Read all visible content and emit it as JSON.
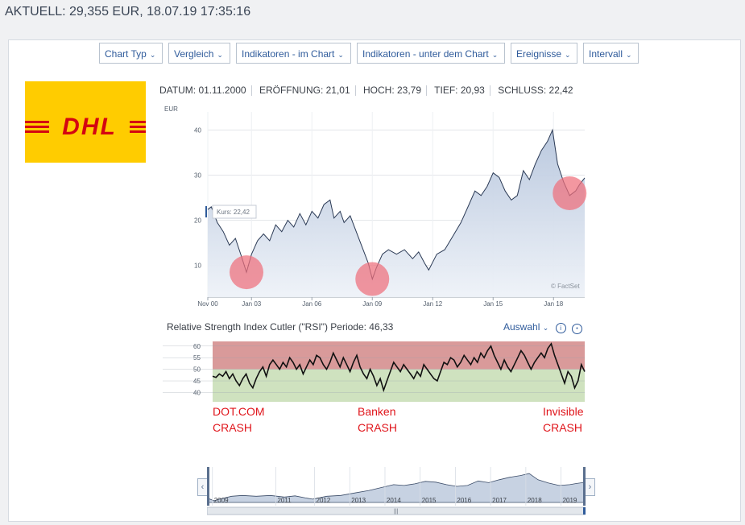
{
  "headline": "AKTUELL: 29,355 EUR, 18.07.19 17:35:16",
  "toolbar": [
    {
      "label": "Chart Typ"
    },
    {
      "label": "Vergleich"
    },
    {
      "label": "Indikatoren - im Chart"
    },
    {
      "label": "Indikatoren - unter dem Chart"
    },
    {
      "label": "Ereignisse"
    },
    {
      "label": "Intervall"
    }
  ],
  "logo": {
    "text": "DHL",
    "bg": "#ffcc00",
    "fg": "#d40511"
  },
  "stats": {
    "datum": "DATUM: 01.11.2000",
    "eroeffnung": "ERÖFFNUNG: 21,01",
    "hoch": "HOCH: 23,79",
    "tief": "TIEF: 20,93",
    "schluss": "SCHLUSS: 22,42"
  },
  "price_chart": {
    "ylabel": "EUR",
    "yticks": [
      "40",
      "30",
      "20",
      "10"
    ],
    "xticks": [
      "Nov 00",
      "Jan 03",
      "Jan 06",
      "Jan 09",
      "Jan 12",
      "Jan 15",
      "Jan 18"
    ],
    "tooltip": "Kurs: 22,42",
    "source": "© FactSet"
  },
  "rsi": {
    "title": "Relative Strength Index Cutler (\"RSI\") Periode: 46,33",
    "auswahl": "Auswahl",
    "yticks": [
      "60",
      "55",
      "50",
      "45",
      "40"
    ]
  },
  "annotations": [
    {
      "line1": "DOT.COM",
      "line2": "CRASH"
    },
    {
      "line1": "Banken",
      "line2": "CRASH"
    },
    {
      "line1": "Invisible",
      "line2": "CRASH"
    }
  ],
  "navigator": {
    "years": [
      "2009",
      "2011",
      "2012",
      "2013",
      "2014",
      "2015",
      "2016",
      "2017",
      "2018",
      "2019"
    ],
    "handle": "|||"
  },
  "colors": {
    "accent": "#2f5b9b",
    "price_line": "#2b3a55",
    "area": "#c4d0e3",
    "rsi_overbought": "#d99a9a",
    "rsi_oversold": "#cfe2bf",
    "annotation": "#e0151b",
    "circle": "#ee6f7b"
  },
  "chart_data": [
    {
      "type": "area",
      "title": "",
      "ylabel": "EUR",
      "ylim": [
        3,
        44
      ],
      "x": [
        2000.83,
        2001.0,
        2001.3,
        2001.6,
        2001.9,
        2002.2,
        2002.5,
        2002.75,
        2003.0,
        2003.3,
        2003.6,
        2003.9,
        2004.2,
        2004.5,
        2004.8,
        2005.1,
        2005.4,
        2005.7,
        2006.0,
        2006.3,
        2006.6,
        2006.9,
        2007.1,
        2007.4,
        2007.6,
        2007.9,
        2008.2,
        2008.5,
        2008.8,
        2009.0,
        2009.2,
        2009.5,
        2009.8,
        2010.2,
        2010.6,
        2011.0,
        2011.3,
        2011.6,
        2011.8,
        2012.2,
        2012.6,
        2013.0,
        2013.4,
        2013.8,
        2014.1,
        2014.4,
        2014.7,
        2015.0,
        2015.3,
        2015.6,
        2015.9,
        2016.2,
        2016.5,
        2016.8,
        2017.1,
        2017.4,
        2017.7,
        2017.95,
        2018.2,
        2018.5,
        2018.8,
        2019.1,
        2019.3,
        2019.55
      ],
      "values": [
        22.4,
        23.0,
        19.5,
        17.5,
        14.5,
        16.0,
        12.0,
        8.5,
        12.5,
        15.5,
        17.0,
        15.5,
        19.0,
        17.5,
        20.0,
        18.5,
        21.5,
        19.0,
        22.0,
        20.5,
        23.5,
        24.5,
        20.5,
        22.0,
        19.5,
        21.0,
        17.5,
        14.0,
        10.5,
        7.0,
        9.5,
        12.5,
        13.5,
        12.5,
        13.5,
        11.5,
        13.0,
        10.5,
        9.0,
        12.5,
        13.5,
        16.5,
        19.5,
        23.5,
        26.5,
        25.5,
        27.5,
        30.5,
        29.5,
        26.5,
        24.5,
        25.5,
        31.0,
        29.0,
        32.5,
        35.5,
        37.5,
        40.0,
        32.5,
        28.5,
        25.5,
        26.5,
        28.0,
        29.4
      ],
      "xlabels": [
        "Nov 00",
        "Jan 03",
        "Jan 06",
        "Jan 09",
        "Jan 12",
        "Jan 15",
        "Jan 18"
      ]
    },
    {
      "type": "line",
      "title": "Relative Strength Index Cutler (\"RSI\") Periode: 46,33",
      "ylim": [
        36,
        62
      ],
      "values": [
        47,
        46.5,
        48,
        47,
        49,
        46,
        48,
        45,
        43,
        46,
        48,
        44,
        42,
        46,
        49,
        51,
        47,
        52,
        54,
        52,
        50,
        53,
        51,
        55,
        53,
        50,
        52,
        48,
        51,
        54,
        52,
        56,
        55,
        52,
        50,
        53,
        57,
        54,
        51,
        55,
        52,
        49,
        53,
        56,
        51,
        48,
        46,
        50,
        47,
        43,
        46,
        41,
        45,
        49,
        53,
        51,
        49,
        52,
        50,
        48,
        46,
        49,
        47,
        52,
        50,
        48,
        46,
        45,
        49,
        53,
        52,
        55,
        54,
        51,
        53,
        56,
        54,
        52,
        55,
        53,
        57,
        55,
        58,
        60,
        56,
        53,
        50,
        54,
        51,
        49,
        52,
        55,
        58,
        56,
        53,
        50,
        53,
        55,
        57,
        55,
        59,
        61,
        56,
        52,
        48,
        44,
        49,
        47,
        42,
        45,
        52,
        49
      ],
      "bands": {
        "overbought": 50,
        "range": [
          36,
          62
        ]
      }
    }
  ]
}
